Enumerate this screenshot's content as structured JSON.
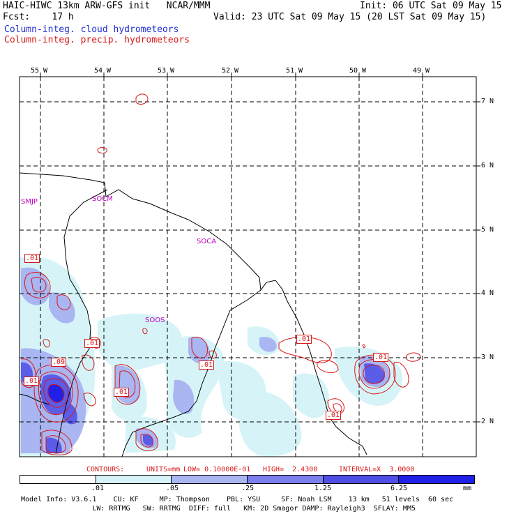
{
  "header": {
    "line1_left": "HAIC-HIWC 13km ARW-GFS init   NCAR/MMM",
    "line1_right": "Init: 06 UTC Sat 09 May 15",
    "line2_left": "Fcst:    17 h",
    "line2_right": "Valid: 23 UTC Sat 09 May 15 (20 LST Sat 09 May 15)",
    "legend_cloud": "Column-integ. cloud hydrometeors",
    "legend_precip": "Column-integ. precip. hydrometeors"
  },
  "colors": {
    "cloud": "#1f2fd0",
    "precip": "#d81818",
    "coast": "#000000",
    "station": "#c000c0"
  },
  "map": {
    "lon_labels": [
      "55 W",
      "54 W",
      "53 W",
      "52 W",
      "51 W",
      "50 W",
      "49 W"
    ],
    "lat_labels": [
      "7 N",
      "6 N",
      "5 N",
      "4 N",
      "3 N",
      "2 N"
    ],
    "stations": [
      "SMJP",
      "SOCM",
      "SOCA",
      "SOOS"
    ],
    "contour_labels": [
      ".01",
      ".01",
      ".09",
      ".01",
      ".01",
      ".01",
      ".01",
      ".01",
      ".01"
    ]
  },
  "contour_info": {
    "contours": "CONTOURS:",
    "units": "UNITS=mm",
    "low": "LOW= 0.10000E-01",
    "high": "HIGH=  2.4300",
    "interval": "INTERVAL=X  3.0000"
  },
  "colorbar": {
    "tick_labels": [
      ".01",
      ".05",
      ".25",
      "1.25",
      "6.25"
    ],
    "unit": "mm",
    "colors": [
      "#ffffff",
      "#d6f4f7",
      "#a9b6f2",
      "#7b80ec",
      "#4f4fe6",
      "#2020e8"
    ]
  },
  "footer": {
    "line1": "Model Info: V3.6.1    CU: KF     MP: Thompson    PBL: YSU     SF: Noah LSM    13 km   51 levels  60 sec",
    "line2": "                 LW: RRTMG   SW: RRTMG  DIFF: full   KM: 2D Smagor DAMP: Rayleigh3  SFLAY: MM5"
  }
}
